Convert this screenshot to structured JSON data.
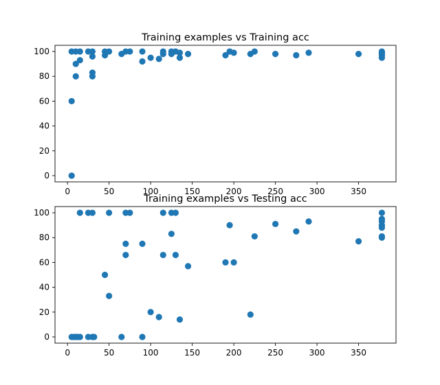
{
  "chart_data": [
    {
      "type": "scatter",
      "title": "Training examples vs Training acc",
      "xlabel": "",
      "ylabel": "",
      "xlim": [
        -15,
        395
      ],
      "ylim": [
        -5,
        105
      ],
      "xticks": [
        "0",
        "50",
        "100",
        "150",
        "200",
        "250",
        "300",
        "350"
      ],
      "yticks": [
        "0",
        "20",
        "40",
        "60",
        "80",
        "100"
      ],
      "grid": false,
      "color": "#1f77b4",
      "series": [
        {
          "points": [
            [
              5,
              100
            ],
            [
              5,
              60
            ],
            [
              5,
              0
            ],
            [
              10,
              100
            ],
            [
              10,
              90
            ],
            [
              10,
              80
            ],
            [
              15,
              100
            ],
            [
              15,
              93
            ],
            [
              25,
              100
            ],
            [
              30,
              100
            ],
            [
              30,
              96
            ],
            [
              30,
              83
            ],
            [
              30,
              80
            ],
            [
              45,
              100
            ],
            [
              45,
              97
            ],
            [
              50,
              100
            ],
            [
              65,
              98
            ],
            [
              70,
              100
            ],
            [
              75,
              100
            ],
            [
              90,
              100
            ],
            [
              90,
              92
            ],
            [
              100,
              95
            ],
            [
              110,
              94
            ],
            [
              115,
              100
            ],
            [
              115,
              98
            ],
            [
              125,
              100
            ],
            [
              125,
              98
            ],
            [
              130,
              100
            ],
            [
              135,
              99
            ],
            [
              135,
              95
            ],
            [
              145,
              98
            ],
            [
              190,
              97
            ],
            [
              195,
              100
            ],
            [
              200,
              99
            ],
            [
              220,
              98
            ],
            [
              225,
              100
            ],
            [
              250,
              98
            ],
            [
              275,
              97
            ],
            [
              290,
              99
            ],
            [
              350,
              98
            ],
            [
              378,
              100
            ],
            [
              378,
              99
            ],
            [
              378,
              98
            ],
            [
              378,
              97
            ],
            [
              378,
              95
            ]
          ]
        }
      ]
    },
    {
      "type": "scatter",
      "title": "Training examples vs Testing acc",
      "xlabel": "",
      "ylabel": "",
      "xlim": [
        -15,
        395
      ],
      "ylim": [
        -5,
        105
      ],
      "xticks": [
        "0",
        "50",
        "100",
        "150",
        "200",
        "250",
        "300",
        "350"
      ],
      "yticks": [
        "0",
        "20",
        "40",
        "60",
        "80",
        "100"
      ],
      "grid": false,
      "color": "#1f77b4",
      "series": [
        {
          "points": [
            [
              5,
              0
            ],
            [
              8,
              0
            ],
            [
              10,
              0
            ],
            [
              12,
              0
            ],
            [
              15,
              0
            ],
            [
              15,
              100
            ],
            [
              25,
              100
            ],
            [
              25,
              0
            ],
            [
              30,
              100
            ],
            [
              30,
              0
            ],
            [
              32,
              0
            ],
            [
              45,
              50
            ],
            [
              50,
              100
            ],
            [
              50,
              33
            ],
            [
              65,
              0
            ],
            [
              70,
              100
            ],
            [
              70,
              75
            ],
            [
              70,
              66
            ],
            [
              75,
              100
            ],
            [
              90,
              75
            ],
            [
              90,
              0
            ],
            [
              100,
              20
            ],
            [
              110,
              16
            ],
            [
              115,
              100
            ],
            [
              115,
              66
            ],
            [
              125,
              100
            ],
            [
              125,
              83
            ],
            [
              130,
              100
            ],
            [
              130,
              66
            ],
            [
              135,
              14
            ],
            [
              145,
              57
            ],
            [
              190,
              60
            ],
            [
              195,
              90
            ],
            [
              200,
              60
            ],
            [
              220,
              18
            ],
            [
              225,
              81
            ],
            [
              250,
              91
            ],
            [
              275,
              85
            ],
            [
              290,
              93
            ],
            [
              350,
              77
            ],
            [
              378,
              100
            ],
            [
              378,
              95
            ],
            [
              378,
              93
            ],
            [
              378,
              90
            ],
            [
              378,
              88
            ],
            [
              378,
              81
            ],
            [
              378,
              80
            ]
          ]
        }
      ]
    }
  ]
}
